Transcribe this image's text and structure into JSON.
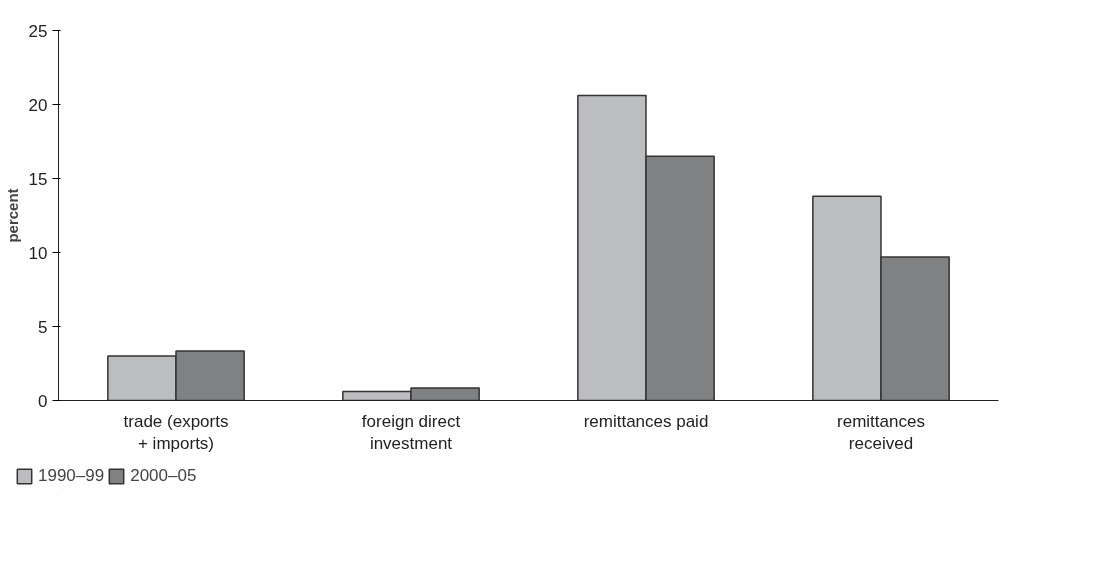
{
  "chart_data": {
    "type": "bar",
    "ylabel": "percent",
    "categories": [
      "trade (exports\n+ imports)",
      "foreign direct\ninvestment",
      "remittances paid",
      "remittances\nreceived"
    ],
    "series": [
      {
        "name": "1990–99",
        "color": "#bcbdbf",
        "values": [
          3.0,
          0.6,
          20.6,
          13.8
        ]
      },
      {
        "name": "2000–05",
        "color": "#808183",
        "values": [
          3.35,
          0.85,
          16.5,
          9.7
        ]
      }
    ],
    "ylim": [
      0,
      25
    ],
    "yticks": [
      0,
      5,
      10,
      15,
      20,
      25
    ],
    "grid": false,
    "legend": "bottom left"
  }
}
